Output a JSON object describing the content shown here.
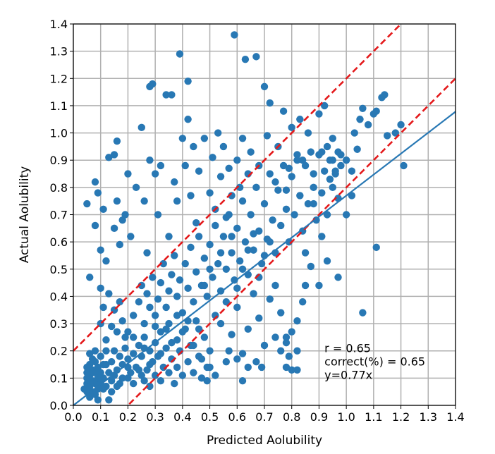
{
  "chart_data": {
    "type": "scatter",
    "xlabel": "Predicted Aolubility",
    "ylabel": "Actual Aolubility",
    "xlim": [
      0.0,
      1.4
    ],
    "ylim": [
      0.0,
      1.4
    ],
    "grid": true,
    "x_ticks": [
      "0.0",
      "0.1",
      "0.2",
      "0.3",
      "0.4",
      "0.5",
      "0.6",
      "0.7",
      "0.8",
      "0.9",
      "1.0",
      "1.1",
      "1.2",
      "1.3",
      "1.4"
    ],
    "y_ticks": [
      "0.0",
      "0.1",
      "0.2",
      "0.3",
      "0.4",
      "0.5",
      "0.6",
      "0.7",
      "0.8",
      "0.9",
      "1.0",
      "1.1",
      "1.2",
      "1.3",
      "1.4"
    ],
    "annotations": [
      "r = 0.65",
      "correct(%) = 0.65",
      "y=0.77x"
    ],
    "colors": {
      "points": "#2878b4",
      "fit_line": "#2878b4",
      "band_lines": "#e41a1c",
      "grid": "#b0b0b0"
    },
    "fit_line": {
      "slope": 0.77,
      "intercept": 0.0,
      "style": "solid"
    },
    "band_lines": [
      {
        "slope": 1.0,
        "intercept": 0.2,
        "style": "dashed"
      },
      {
        "slope": 1.0,
        "intercept": -0.2,
        "style": "dashed"
      }
    ],
    "points": [
      [
        0.04,
        0.06
      ],
      [
        0.05,
        0.05
      ],
      [
        0.05,
        0.08
      ],
      [
        0.05,
        0.1
      ],
      [
        0.05,
        0.12
      ],
      [
        0.05,
        0.14
      ],
      [
        0.06,
        0.03
      ],
      [
        0.06,
        0.07
      ],
      [
        0.06,
        0.11
      ],
      [
        0.06,
        0.15
      ],
      [
        0.07,
        0.05
      ],
      [
        0.07,
        0.09
      ],
      [
        0.07,
        0.13
      ],
      [
        0.07,
        0.17
      ],
      [
        0.08,
        0.04
      ],
      [
        0.08,
        0.08
      ],
      [
        0.08,
        0.12
      ],
      [
        0.08,
        0.16
      ],
      [
        0.08,
        0.2
      ],
      [
        0.09,
        0.06
      ],
      [
        0.09,
        0.1
      ],
      [
        0.09,
        0.14
      ],
      [
        0.1,
        0.08
      ],
      [
        0.1,
        0.12
      ],
      [
        0.1,
        0.18
      ],
      [
        0.11,
        0.1
      ],
      [
        0.11,
        0.15
      ],
      [
        0.12,
        0.07
      ],
      [
        0.12,
        0.2
      ],
      [
        0.13,
        0.12
      ],
      [
        0.14,
        0.09
      ],
      [
        0.14,
        0.16
      ],
      [
        0.15,
        0.11
      ],
      [
        0.15,
        0.2
      ],
      [
        0.16,
        0.13
      ],
      [
        0.17,
        0.08
      ],
      [
        0.17,
        0.18
      ],
      [
        0.18,
        0.15
      ],
      [
        0.19,
        0.21
      ],
      [
        0.2,
        0.1
      ],
      [
        0.2,
        0.17
      ],
      [
        0.21,
        0.12
      ],
      [
        0.22,
        0.19
      ],
      [
        0.22,
        0.08
      ],
      [
        0.23,
        0.14
      ],
      [
        0.24,
        0.22
      ],
      [
        0.25,
        0.11
      ],
      [
        0.25,
        0.18
      ],
      [
        0.26,
        0.09
      ],
      [
        0.26,
        0.25
      ],
      [
        0.27,
        0.13
      ],
      [
        0.28,
        0.2
      ],
      [
        0.28,
        0.07
      ],
      [
        0.29,
        0.16
      ],
      [
        0.3,
        0.23
      ],
      [
        0.3,
        0.11
      ],
      [
        0.31,
        0.18
      ],
      [
        0.32,
        0.09
      ],
      [
        0.32,
        0.27
      ],
      [
        0.33,
        0.14
      ],
      [
        0.34,
        0.21
      ],
      [
        0.35,
        0.12
      ],
      [
        0.35,
        0.3
      ],
      [
        0.36,
        0.17
      ],
      [
        0.37,
        0.08
      ],
      [
        0.38,
        0.24
      ],
      [
        0.38,
        0.14
      ],
      [
        0.39,
        0.2
      ],
      [
        0.4,
        0.11
      ],
      [
        0.41,
        0.28
      ],
      [
        0.42,
        0.16
      ],
      [
        0.43,
        0.22
      ],
      [
        0.44,
        0.12
      ],
      [
        0.45,
        0.31
      ],
      [
        0.46,
        0.18
      ],
      [
        0.47,
        0.1
      ],
      [
        0.48,
        0.25
      ],
      [
        0.49,
        0.14
      ],
      [
        0.5,
        0.2
      ],
      [
        0.52,
        0.11
      ],
      [
        0.2,
        0.27
      ],
      [
        0.22,
        0.33
      ],
      [
        0.24,
        0.38
      ],
      [
        0.25,
        0.44
      ],
      [
        0.26,
        0.3
      ],
      [
        0.27,
        0.41
      ],
      [
        0.28,
        0.36
      ],
      [
        0.29,
        0.47
      ],
      [
        0.3,
        0.33
      ],
      [
        0.31,
        0.39
      ],
      [
        0.32,
        0.45
      ],
      [
        0.33,
        0.52
      ],
      [
        0.34,
        0.36
      ],
      [
        0.35,
        0.42
      ],
      [
        0.36,
        0.48
      ],
      [
        0.37,
        0.55
      ],
      [
        0.38,
        0.4
      ],
      [
        0.39,
        0.46
      ],
      [
        0.4,
        0.34
      ],
      [
        0.41,
        0.52
      ],
      [
        0.42,
        0.43
      ],
      [
        0.43,
        0.58
      ],
      [
        0.44,
        0.38
      ],
      [
        0.45,
        0.49
      ],
      [
        0.46,
        0.62
      ],
      [
        0.47,
        0.44
      ],
      [
        0.48,
        0.54
      ],
      [
        0.49,
        0.4
      ],
      [
        0.5,
        0.59
      ],
      [
        0.51,
        0.47
      ],
      [
        0.52,
        0.66
      ],
      [
        0.53,
        0.52
      ],
      [
        0.54,
        0.42
      ],
      [
        0.55,
        0.62
      ],
      [
        0.56,
        0.5
      ],
      [
        0.57,
        0.7
      ],
      [
        0.58,
        0.56
      ],
      [
        0.59,
        0.46
      ],
      [
        0.6,
        0.65
      ],
      [
        0.61,
        0.53
      ],
      [
        0.62,
        0.75
      ],
      [
        0.63,
        0.6
      ],
      [
        0.64,
        0.48
      ],
      [
        0.65,
        0.7
      ],
      [
        0.66,
        0.57
      ],
      [
        0.67,
        0.8
      ],
      [
        0.68,
        0.64
      ],
      [
        0.69,
        0.52
      ],
      [
        0.7,
        0.74
      ],
      [
        0.71,
        0.61
      ],
      [
        0.72,
        0.85
      ],
      [
        0.73,
        0.68
      ],
      [
        0.74,
        0.56
      ],
      [
        0.75,
        0.79
      ],
      [
        0.76,
        0.66
      ],
      [
        0.77,
        0.88
      ],
      [
        0.78,
        0.72
      ],
      [
        0.79,
        0.6
      ],
      [
        0.8,
        0.84
      ],
      [
        0.81,
        0.7
      ],
      [
        0.82,
        0.9
      ],
      [
        0.83,
        0.77
      ],
      [
        0.84,
        0.64
      ],
      [
        0.85,
        0.88
      ],
      [
        0.86,
        0.74
      ],
      [
        0.87,
        0.93
      ],
      [
        0.88,
        0.8
      ],
      [
        0.89,
        0.68
      ],
      [
        0.9,
        0.92
      ],
      [
        0.91,
        0.78
      ],
      [
        0.92,
        0.86
      ],
      [
        0.93,
        0.95
      ],
      [
        0.94,
        0.83
      ],
      [
        0.95,
        0.9
      ],
      [
        0.96,
        0.85
      ],
      [
        0.97,
        0.93
      ],
      [
        0.98,
        0.88
      ],
      [
        1.0,
        0.9
      ],
      [
        1.02,
        0.86
      ],
      [
        1.04,
        0.94
      ],
      [
        0.1,
        0.3
      ],
      [
        0.11,
        0.36
      ],
      [
        0.12,
        0.24
      ],
      [
        0.13,
        0.41
      ],
      [
        0.14,
        0.29
      ],
      [
        0.15,
        0.35
      ],
      [
        0.16,
        0.27
      ],
      [
        0.17,
        0.38
      ],
      [
        0.18,
        0.31
      ],
      [
        0.19,
        0.25
      ],
      [
        0.05,
        0.74
      ],
      [
        0.06,
        0.47
      ],
      [
        0.08,
        0.82
      ],
      [
        0.08,
        0.66
      ],
      [
        0.09,
        0.78
      ],
      [
        0.1,
        0.57
      ],
      [
        0.1,
        0.43
      ],
      [
        0.11,
        0.72
      ],
      [
        0.12,
        0.53
      ],
      [
        0.13,
        0.91
      ],
      [
        0.15,
        0.65
      ],
      [
        0.15,
        0.92
      ],
      [
        0.16,
        0.97
      ],
      [
        0.16,
        0.75
      ],
      [
        0.17,
        0.59
      ],
      [
        0.18,
        0.68
      ],
      [
        0.19,
        0.7
      ],
      [
        0.2,
        0.85
      ],
      [
        0.21,
        0.62
      ],
      [
        0.23,
        0.8
      ],
      [
        0.25,
        1.02
      ],
      [
        0.26,
        0.75
      ],
      [
        0.27,
        0.56
      ],
      [
        0.28,
        1.17
      ],
      [
        0.28,
        0.9
      ],
      [
        0.29,
        1.18
      ],
      [
        0.3,
        0.85
      ],
      [
        0.31,
        0.7
      ],
      [
        0.32,
        0.88
      ],
      [
        0.34,
        1.14
      ],
      [
        0.35,
        0.62
      ],
      [
        0.36,
        1.14
      ],
      [
        0.37,
        0.82
      ],
      [
        0.38,
        0.75
      ],
      [
        0.39,
        1.29
      ],
      [
        0.4,
        0.98
      ],
      [
        0.41,
        0.88
      ],
      [
        0.42,
        1.19
      ],
      [
        0.42,
        1.05
      ],
      [
        0.43,
        0.77
      ],
      [
        0.44,
        0.95
      ],
      [
        0.45,
        0.67
      ],
      [
        0.46,
        0.86
      ],
      [
        0.48,
        0.98
      ],
      [
        0.5,
        0.78
      ],
      [
        0.51,
        0.91
      ],
      [
        0.52,
        0.72
      ],
      [
        0.53,
        1.0
      ],
      [
        0.54,
        0.84
      ],
      [
        0.55,
        0.95
      ],
      [
        0.56,
        0.69
      ],
      [
        0.57,
        0.87
      ],
      [
        0.58,
        0.77
      ],
      [
        0.59,
        1.36
      ],
      [
        0.6,
        0.9
      ],
      [
        0.61,
        0.8
      ],
      [
        0.62,
        0.98
      ],
      [
        0.63,
        1.27
      ],
      [
        0.64,
        0.85
      ],
      [
        0.65,
        0.93
      ],
      [
        0.67,
        1.28
      ],
      [
        0.68,
        0.88
      ],
      [
        0.7,
        1.17
      ],
      [
        0.71,
        0.99
      ],
      [
        0.72,
        1.11
      ],
      [
        0.74,
        0.82
      ],
      [
        0.75,
        0.95
      ],
      [
        0.77,
        1.08
      ],
      [
        0.78,
        0.79
      ],
      [
        0.79,
        0.87
      ],
      [
        0.8,
        1.02
      ],
      [
        0.82,
        0.92
      ],
      [
        0.83,
        1.05
      ],
      [
        0.84,
        0.9
      ],
      [
        0.86,
        1.0
      ],
      [
        0.88,
        0.85
      ],
      [
        0.9,
        1.07
      ],
      [
        0.91,
        0.93
      ],
      [
        0.92,
        1.1
      ],
      [
        0.94,
        0.9
      ],
      [
        0.95,
        0.98
      ],
      [
        0.96,
        0.86
      ],
      [
        0.98,
        0.92
      ],
      [
        1.0,
        0.9
      ],
      [
        1.02,
        0.77
      ],
      [
        1.03,
        1.0
      ],
      [
        1.05,
        1.05
      ],
      [
        1.06,
        1.09
      ],
      [
        1.08,
        1.03
      ],
      [
        1.1,
        1.07
      ],
      [
        1.11,
        1.08
      ],
      [
        1.13,
        1.13
      ],
      [
        1.14,
        1.14
      ],
      [
        1.15,
        0.99
      ],
      [
        1.18,
        1.0
      ],
      [
        1.2,
        1.03
      ],
      [
        1.21,
        0.88
      ],
      [
        1.11,
        0.58
      ],
      [
        1.06,
        0.34
      ],
      [
        0.97,
        0.47
      ],
      [
        0.93,
        0.53
      ],
      [
        0.9,
        0.44
      ],
      [
        0.87,
        0.51
      ],
      [
        0.85,
        0.44
      ],
      [
        0.84,
        0.38
      ],
      [
        0.82,
        0.31
      ],
      [
        0.8,
        0.27
      ],
      [
        0.78,
        0.23
      ],
      [
        0.76,
        0.34
      ],
      [
        0.74,
        0.25
      ],
      [
        0.72,
        0.39
      ],
      [
        0.7,
        0.22
      ],
      [
        0.68,
        0.32
      ],
      [
        0.66,
        0.41
      ],
      [
        0.64,
        0.28
      ],
      [
        0.62,
        0.19
      ],
      [
        0.6,
        0.36
      ],
      [
        0.58,
        0.26
      ],
      [
        0.56,
        0.16
      ],
      [
        0.54,
        0.3
      ],
      [
        0.82,
        0.13
      ],
      [
        0.8,
        0.13
      ],
      [
        0.79,
        0.18
      ],
      [
        0.78,
        0.14
      ],
      [
        0.82,
        0.2
      ],
      [
        0.76,
        0.2
      ],
      [
        0.78,
        0.25
      ],
      [
        0.69,
        0.14
      ],
      [
        0.67,
        0.16
      ],
      [
        0.64,
        0.14
      ],
      [
        0.62,
        0.09
      ],
      [
        0.6,
        0.17
      ],
      [
        0.57,
        0.2
      ],
      [
        0.5,
        0.14
      ],
      [
        0.49,
        0.09
      ],
      [
        0.47,
        0.17
      ],
      [
        0.85,
        0.56
      ],
      [
        0.88,
        0.74
      ],
      [
        0.91,
        0.62
      ],
      [
        0.93,
        0.7
      ],
      [
        0.95,
        0.8
      ],
      [
        0.97,
        0.76
      ],
      [
        1.0,
        0.7
      ],
      [
        0.74,
        0.44
      ],
      [
        0.72,
        0.6
      ],
      [
        0.7,
        0.55
      ],
      [
        0.68,
        0.47
      ],
      [
        0.66,
        0.63
      ],
      [
        0.64,
        0.57
      ],
      [
        0.62,
        0.5
      ],
      [
        0.6,
        0.43
      ],
      [
        0.58,
        0.62
      ],
      [
        0.56,
        0.38
      ],
      [
        0.54,
        0.56
      ],
      [
        0.52,
        0.33
      ],
      [
        0.5,
        0.5
      ],
      [
        0.48,
        0.44
      ],
      [
        0.46,
        0.28
      ],
      [
        0.44,
        0.22
      ],
      [
        0.42,
        0.31
      ],
      [
        0.4,
        0.27
      ],
      [
        0.38,
        0.33
      ],
      [
        0.36,
        0.23
      ],
      [
        0.34,
        0.28
      ],
      [
        0.32,
        0.19
      ],
      [
        0.3,
        0.29
      ],
      [
        0.28,
        0.15
      ],
      [
        0.26,
        0.21
      ],
      [
        0.24,
        0.13
      ],
      [
        0.22,
        0.25
      ],
      [
        0.2,
        0.14
      ],
      [
        0.18,
        0.1
      ],
      [
        0.16,
        0.07
      ],
      [
        0.14,
        0.05
      ],
      [
        0.13,
        0.02
      ],
      [
        0.12,
        0.15
      ],
      [
        0.11,
        0.06
      ],
      [
        0.09,
        0.02
      ],
      [
        0.07,
        0.12
      ],
      [
        0.06,
        0.19
      ]
    ]
  }
}
